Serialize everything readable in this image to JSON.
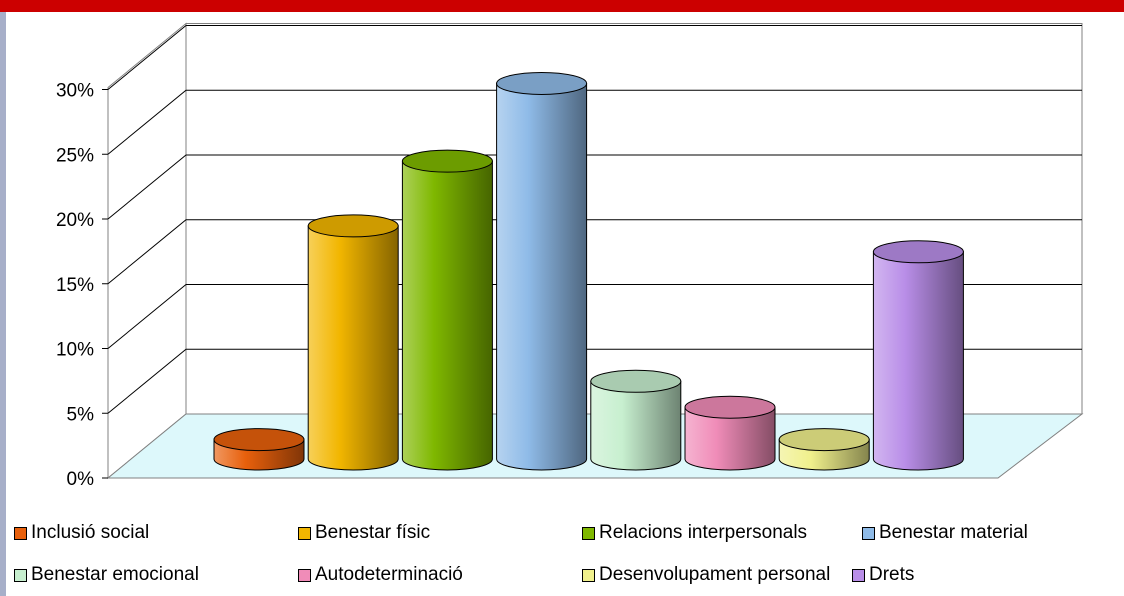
{
  "chart_data": {
    "type": "bar",
    "style": "3d-cylinder",
    "categories": [
      "Inclusió social",
      "Benestar físic",
      "Relacions interpersonals",
      "Benestar material",
      "Benestar emocional",
      "Autodeterminació",
      "Desenvolupament personal",
      "Drets"
    ],
    "values": [
      1.5,
      18,
      23,
      29,
      6,
      4,
      1.5,
      16
    ],
    "colors": [
      "#e8600c",
      "#f2b600",
      "#7fb800",
      "#8fbbe8",
      "#c7efcf",
      "#f08cb8",
      "#f0f08c",
      "#b98ee8"
    ],
    "y_ticks": [
      "0%",
      "5%",
      "10%",
      "15%",
      "20%",
      "25%",
      "30%"
    ],
    "ylim": [
      0,
      30
    ],
    "grid": true,
    "floor_color": "#ddf8fb",
    "legend_position": "bottom"
  },
  "legend": {
    "items": [
      "Inclusió social",
      "Benestar físic",
      "Relacions interpersonals",
      "Benestar material",
      "Benestar emocional",
      "Autodeterminació",
      "Desenvolupament personal",
      "Drets"
    ]
  },
  "frame": {
    "top_bar_color": "#cc0000",
    "side_bar_color": "#a7afc9"
  }
}
